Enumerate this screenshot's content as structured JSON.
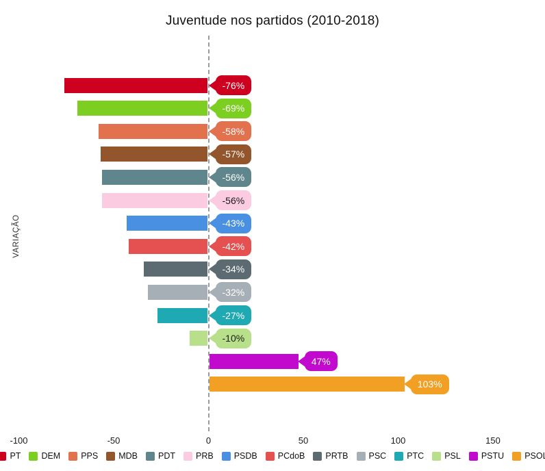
{
  "title": "Juventude nos partidos (2010-2018)",
  "y_axis_label": "VARIAÇÃO",
  "colors": {
    "background": "#FFFFFF",
    "zero_line": "#9B9B9B",
    "text": "#111111"
  },
  "chart_data": {
    "type": "bar",
    "orientation": "horizontal",
    "title": "Juventude nos partidos (2010-2018)",
    "xlabel": "",
    "ylabel": "VARIAÇÃO",
    "xlim": [
      -100,
      150
    ],
    "grid": false,
    "zero_line_style": "dashed",
    "legend_position": "bottom",
    "x_ticks": [
      {
        "value": -100,
        "label": "-100"
      },
      {
        "value": -50,
        "label": "-50"
      },
      {
        "value": 0,
        "label": "0"
      },
      {
        "value": 50,
        "label": "50"
      },
      {
        "value": 100,
        "label": "100"
      },
      {
        "value": 150,
        "label": "150"
      }
    ],
    "categories": [
      "PT",
      "DEM",
      "PPS",
      "MDB",
      "PDT",
      "PRB",
      "PSDB",
      "PCdoB",
      "PRTB",
      "PSC",
      "PTC",
      "PSL",
      "PSTU",
      "PSOL"
    ],
    "values": [
      -76,
      -69,
      -58,
      -57,
      -56,
      -56,
      -43,
      -42,
      -34,
      -32,
      -27,
      -10,
      47,
      103
    ],
    "parties": [
      {
        "name": "PT",
        "value": -76,
        "label": "-76%",
        "color": "#CE0020",
        "label_text_color": "#FFFFFF"
      },
      {
        "name": "DEM",
        "value": -69,
        "label": "-69%",
        "color": "#7CCE20",
        "label_text_color": "#FFFFFF"
      },
      {
        "name": "PPS",
        "value": -58,
        "label": "-58%",
        "color": "#E2714D",
        "label_text_color": "#FFFFFF"
      },
      {
        "name": "MDB",
        "value": -57,
        "label": "-57%",
        "color": "#92552C",
        "label_text_color": "#FFFFFF"
      },
      {
        "name": "PDT",
        "value": -56,
        "label": "-56%",
        "color": "#5F868C",
        "label_text_color": "#FFFFFF"
      },
      {
        "name": "PRB",
        "value": -56,
        "label": "-56%",
        "color": "#FBCBE2",
        "label_text_color": "#1A1A1A"
      },
      {
        "name": "PSDB",
        "value": -43,
        "label": "-43%",
        "color": "#4A90E2",
        "label_text_color": "#FFFFFF"
      },
      {
        "name": "PCdoB",
        "value": -42,
        "label": "-42%",
        "color": "#E55050",
        "label_text_color": "#FFFFFF"
      },
      {
        "name": "PRTB",
        "value": -34,
        "label": "-34%",
        "color": "#5C6B72",
        "label_text_color": "#FFFFFF"
      },
      {
        "name": "PSC",
        "value": -32,
        "label": "-32%",
        "color": "#A7AFB6",
        "label_text_color": "#FFFFFF"
      },
      {
        "name": "PTC",
        "value": -27,
        "label": "-27%",
        "color": "#1FA9B2",
        "label_text_color": "#FFFFFF"
      },
      {
        "name": "PSL",
        "value": -10,
        "label": "-10%",
        "color": "#B8E08A",
        "label_text_color": "#1A1A1A"
      },
      {
        "name": "PSTU",
        "value": 47,
        "label": "47%",
        "color": "#C20ACF",
        "label_text_color": "#FFFFFF"
      },
      {
        "name": "PSOL",
        "value": 103,
        "label": "103%",
        "color": "#F2A024",
        "label_text_color": "#FFFFFF"
      }
    ]
  }
}
